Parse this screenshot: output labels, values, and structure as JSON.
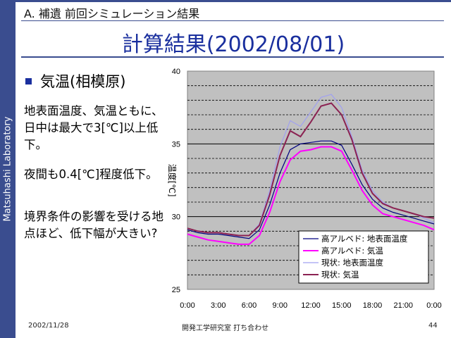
{
  "sidebar": {
    "text": "Matsuhashi Laboratory"
  },
  "header": {
    "section": "A. 補遺 前回シミュレーション結果"
  },
  "slide": {
    "title": "計算結果(2002/08/01)",
    "bullet": "気温(相模原)",
    "paragraphs": [
      "地表面温度、気温ともに、日中は最大で3[℃]以上低下。",
      "夜間も0.4[℃]程度低下。",
      "境界条件の影響を受ける地点ほど、低下幅が大きい?"
    ]
  },
  "footer": {
    "date": "2002/11/28",
    "center": "開発工学研究室 打ち合わせ",
    "page": "44"
  },
  "colors": {
    "sidebar": "#3a4d8f",
    "title": "#1a2f9e",
    "plot_bg": "#c0c0c0"
  },
  "chart_data": {
    "type": "line",
    "ylabel": "温度[℃]",
    "ylim": [
      25,
      40
    ],
    "yticks": [
      "25",
      "30",
      "35",
      "40"
    ],
    "xlim": [
      0,
      24
    ],
    "xticks": [
      "0:00",
      "3:00",
      "6:00",
      "9:00",
      "12:00",
      "15:00",
      "18:00",
      "21:00",
      "0:00"
    ],
    "grid": true,
    "legend_position": "bottom-right",
    "x": [
      0,
      1,
      2,
      3,
      4,
      5,
      6,
      7,
      8,
      9,
      10,
      11,
      12,
      13,
      14,
      15,
      16,
      17,
      18,
      19,
      20,
      21,
      22,
      23,
      24
    ],
    "series": [
      {
        "name": "高アルベド: 地表面温度",
        "color": "#000080",
        "values": [
          29.1,
          28.9,
          28.8,
          28.8,
          28.7,
          28.6,
          28.5,
          29.1,
          30.8,
          33.0,
          34.6,
          35.0,
          35.1,
          35.2,
          35.2,
          34.9,
          33.6,
          32.2,
          31.2,
          30.6,
          30.3,
          30.1,
          29.9,
          29.7,
          29.5
        ]
      },
      {
        "name": "高アルベド: 気温",
        "color": "#ff00ff",
        "values": [
          28.8,
          28.6,
          28.4,
          28.3,
          28.2,
          28.1,
          28.1,
          28.7,
          30.3,
          32.4,
          33.9,
          34.5,
          34.6,
          34.8,
          34.8,
          34.5,
          33.2,
          31.8,
          30.8,
          30.2,
          30.0,
          29.8,
          29.6,
          29.4,
          29.1
        ]
      },
      {
        "name": "現状: 地表面温度",
        "color": "#a0a0f0",
        "values": [
          29.2,
          29.0,
          28.9,
          28.9,
          28.8,
          28.7,
          28.7,
          29.5,
          31.8,
          34.8,
          36.6,
          36.2,
          37.2,
          38.2,
          38.4,
          37.5,
          35.5,
          33.2,
          31.8,
          31.0,
          30.6,
          30.4,
          30.2,
          29.9,
          29.6
        ]
      },
      {
        "name": "現状: 気温",
        "color": "#8b2252",
        "values": [
          29.2,
          29.0,
          28.9,
          28.9,
          28.8,
          28.7,
          28.7,
          29.4,
          31.5,
          34.2,
          35.9,
          35.5,
          36.5,
          37.6,
          37.8,
          37.0,
          35.3,
          33.0,
          31.6,
          30.9,
          30.6,
          30.4,
          30.2,
          30.0,
          29.9
        ]
      }
    ]
  }
}
